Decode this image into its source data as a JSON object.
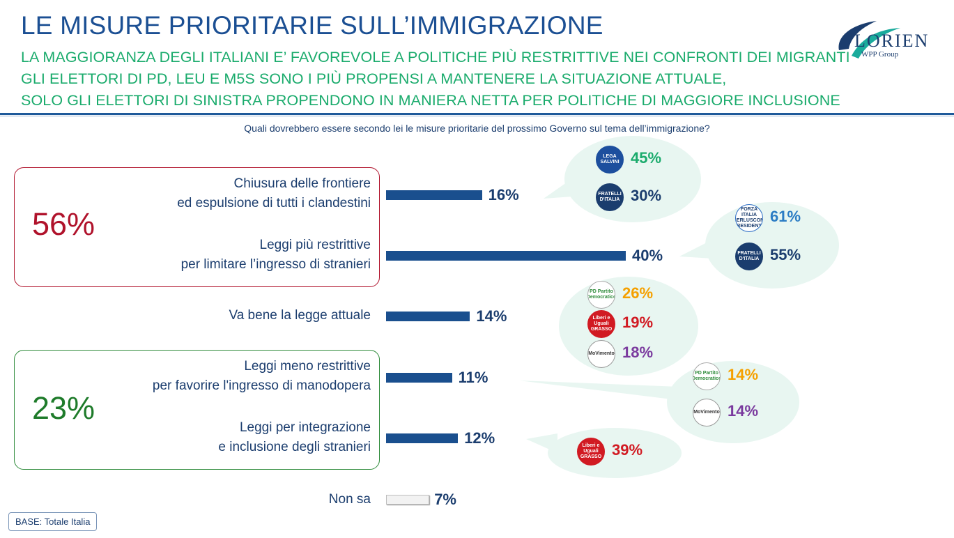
{
  "header": {
    "title": "LE MISURE PRIORITARIE SULL’IMMIGRAZIONE",
    "subtitle_lines": [
      "LA MAGGIORANZA DEGLI ITALIANI E’ FAVOREVOLE A POLITICHE PIÙ RESTRITTIVE NEI CONFRONTI DEI MIGRANTI",
      "GLI ELETTORI DI PD, LEU E M5S SONO I PIÙ PROPENSI A MANTENERE LA SITUAZIONE ATTUALE,",
      "SOLO GLI ELETTORI DI SINISTRA PROPENDONO IN MANIERA NETTA PER POLITICHE DI MAGGIORE INCLUSIONE"
    ],
    "question": "Quali dovrebbero essere secondo lei le misure prioritarie del prossimo Governo sul tema dell’immigrazione?"
  },
  "logo": {
    "word": "LORIEN",
    "sub": "WPP Group"
  },
  "groups": [
    {
      "value": "56%",
      "color": "#b0122b"
    },
    {
      "value": "23%",
      "color": "#1e7b2a"
    }
  ],
  "party_logos": {
    "lega": "LEGA SALVINI",
    "fdi": "FRATELLI D'ITALIA",
    "fi": "FORZA ITALIA BERLUSCONI PRESIDENTE",
    "pd": "PD Partito Democratico",
    "leu": "Liberi e Uguali GRASSO",
    "m5s": "MoVimento"
  },
  "chart_data": {
    "type": "bar",
    "orientation": "horizontal",
    "categories": [
      "Chiusura delle frontiere\ned espulsione di tutti i clandestini",
      "Leggi più restrittive\nper limitare l’ingresso di stranieri",
      "Va bene la legge attuale",
      "Leggi meno restrittive\nper favorire l'ingresso di manodopera",
      "Leggi per integrazione\ne inclusione degli stranieri",
      "Non sa"
    ],
    "values": [
      16,
      40,
      14,
      11,
      12,
      7
    ],
    "value_labels": [
      "16%",
      "40%",
      "14%",
      "11%",
      "12%",
      "7%"
    ],
    "bar_colors": [
      "#1a4f8e",
      "#1a4f8e",
      "#1a4f8e",
      "#1a4f8e",
      "#1a4f8e",
      "#f2f2f2"
    ],
    "party_breakdown": [
      [
        {
          "party": "lega",
          "value": "45%",
          "color": "#1aab6c"
        },
        {
          "party": "fdi",
          "value": "30%",
          "color": "#1b3d6e"
        }
      ],
      [
        {
          "party": "fi",
          "value": "61%",
          "color": "#2b7cc4"
        },
        {
          "party": "fdi",
          "value": "55%",
          "color": "#1b3d6e"
        }
      ],
      [
        {
          "party": "pd",
          "value": "26%",
          "color": "#f5a000"
        },
        {
          "party": "leu",
          "value": "19%",
          "color": "#d11a22"
        },
        {
          "party": "m5s",
          "value": "18%",
          "color": "#7a3a9e"
        }
      ],
      [
        {
          "party": "pd",
          "value": "14%",
          "color": "#f5a000"
        },
        {
          "party": "m5s",
          "value": "14%",
          "color": "#7a3a9e"
        }
      ],
      [
        {
          "party": "leu",
          "value": "39%",
          "color": "#d11a22"
        }
      ],
      []
    ]
  },
  "footer": {
    "base": "BASE: Totale Italia"
  }
}
